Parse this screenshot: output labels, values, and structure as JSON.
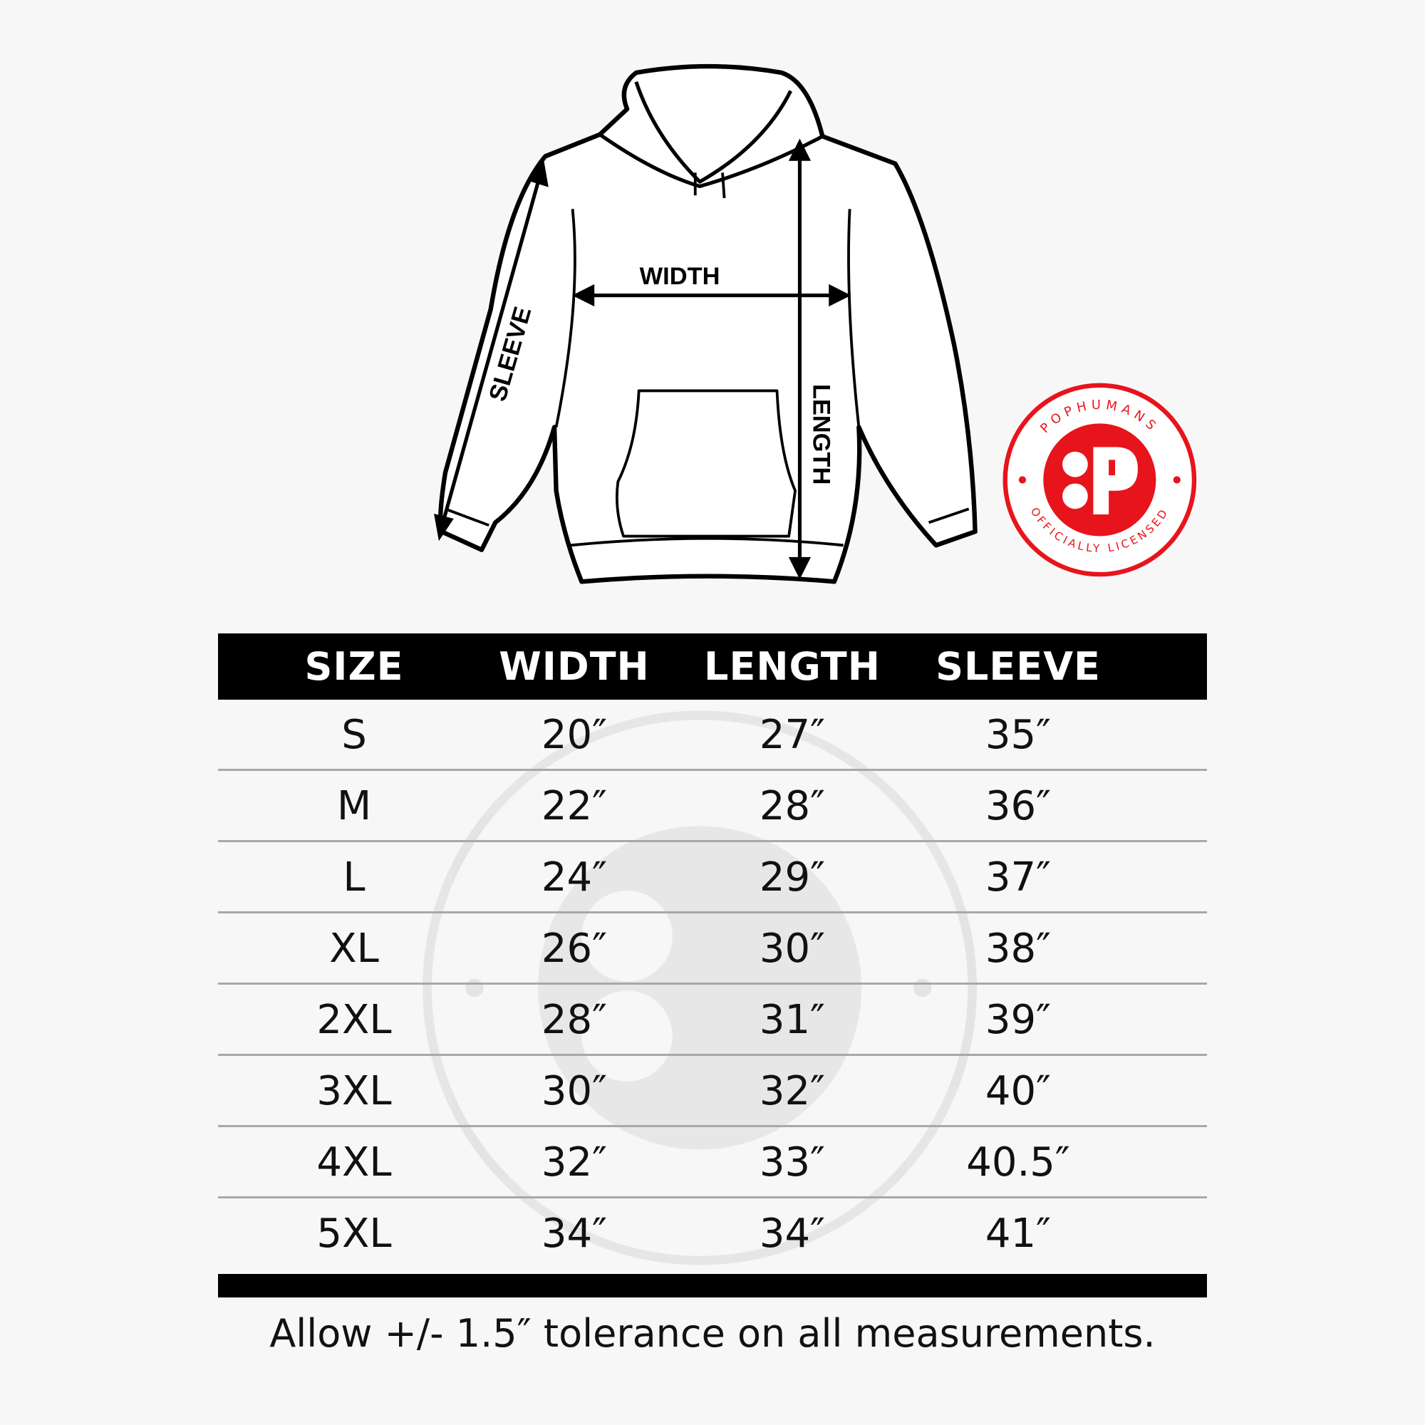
{
  "diagram": {
    "labels": {
      "width": "WIDTH",
      "length": "LENGTH",
      "sleeve": "SLEEVE"
    }
  },
  "logo": {
    "top_text": "POPHUMANS",
    "bottom_text": "OFFICIALLY LICENSED",
    "color": "#e8141c"
  },
  "table": {
    "headers": [
      "SIZE",
      "WIDTH",
      "LENGTH",
      "SLEEVE"
    ],
    "rows": [
      [
        "S",
        "20″",
        "27″",
        "35″"
      ],
      [
        "M",
        "22″",
        "28″",
        "36″"
      ],
      [
        "L",
        "24″",
        "29″",
        "37″"
      ],
      [
        "XL",
        "26″",
        "30″",
        "38″"
      ],
      [
        "2XL",
        "28″",
        "31″",
        "39″"
      ],
      [
        "3XL",
        "30″",
        "32″",
        "40″"
      ],
      [
        "4XL",
        "32″",
        "33″",
        "40.5″"
      ],
      [
        "5XL",
        "34″",
        "34″",
        "41″"
      ]
    ]
  },
  "footer": {
    "note": "Allow +/- 1.5″ tolerance on all measurements."
  }
}
